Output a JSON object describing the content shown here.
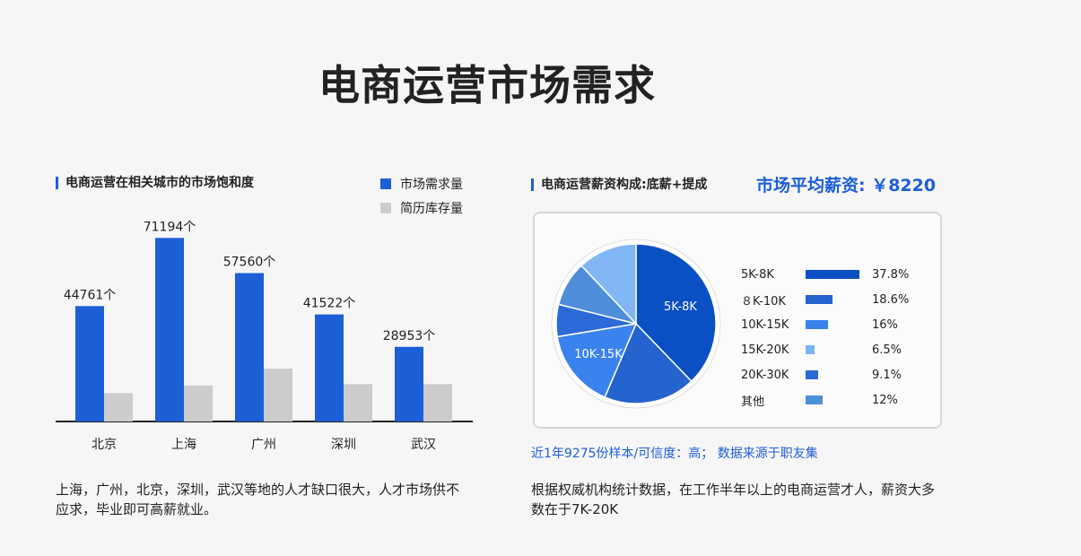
{
  "page": {
    "title": "电商运营市场需求"
  },
  "left_panel": {
    "section_title": "电商运营在相关城市的市场饱和度",
    "description": "上海，广州，北京，深圳，武汉等地的人才缺口很大，人才市场供不应求，毕业即可高薪就业。"
  },
  "right_panel": {
    "section_title": "电商运营薪资构成:底薪+提成",
    "avg_salary": "市场平均薪资: ￥8220",
    "sample_note": "近1年9275份样本/可信度：高； 数据来源于职友集",
    "description": "根据权威机构统计数据，在工作半年以上的电商运营才人，薪资大多数在于7K-20K"
  },
  "chart_data": [
    {
      "type": "bar",
      "title": "电商运营在相关城市的市场饱和度",
      "categories": [
        "北京",
        "上海",
        "广州",
        "深圳",
        "武汉"
      ],
      "series": [
        {
          "name": "市场需求量",
          "color": "#1c5fd6",
          "values": [
            44761,
            71194,
            57560,
            41522,
            28953
          ],
          "labels": [
            "44761个",
            "71194个",
            "57560个",
            "41522个",
            "28953个"
          ]
        },
        {
          "name": "简历库存量",
          "color": "#cccccc",
          "values": [
            11000,
            14000,
            20500,
            14500,
            14500
          ]
        }
      ],
      "ylim": [
        0,
        72000
      ],
      "grid": false,
      "legend": "top-right"
    },
    {
      "type": "pie",
      "title": "电商运营薪资构成:底薪+提成",
      "slices": [
        {
          "label": "5K-8K",
          "list_label": "5K-8K",
          "value": 37.8,
          "pct_label": "37.8%",
          "color": "#0a4fc4",
          "show_on_pie": true
        },
        {
          "label": "8K-10K",
          "list_label": "８K-10K",
          "value": 18.6,
          "pct_label": "18.6%",
          "color": "#2563cf",
          "show_on_pie": false
        },
        {
          "label": "10K-15K",
          "list_label": "10K-15K",
          "value": 16,
          "pct_label": "16%",
          "color": "#3a82ee",
          "show_on_pie": true
        },
        {
          "label": "15K-20K",
          "list_label": "15K-20K",
          "value": 6.5,
          "pct_label": "6.5%",
          "color": "#2c6ad8",
          "show_on_pie": false
        },
        {
          "label": "20K-30K",
          "list_label": "20K-30K",
          "value": 9.1,
          "pct_label": "9.1%",
          "color": "#4f8fd9",
          "show_on_pie": false
        },
        {
          "label": "其他",
          "list_label": "其他",
          "value": 12,
          "pct_label": "12%",
          "color": "#82b6f5",
          "show_on_pie": false
        }
      ],
      "list_bar_colors": [
        "#0a4fc4",
        "#2563cf",
        "#3a82ee",
        "#7ab4f5",
        "#2c6ad8",
        "#4f8fd9"
      ],
      "legend": "right"
    }
  ]
}
